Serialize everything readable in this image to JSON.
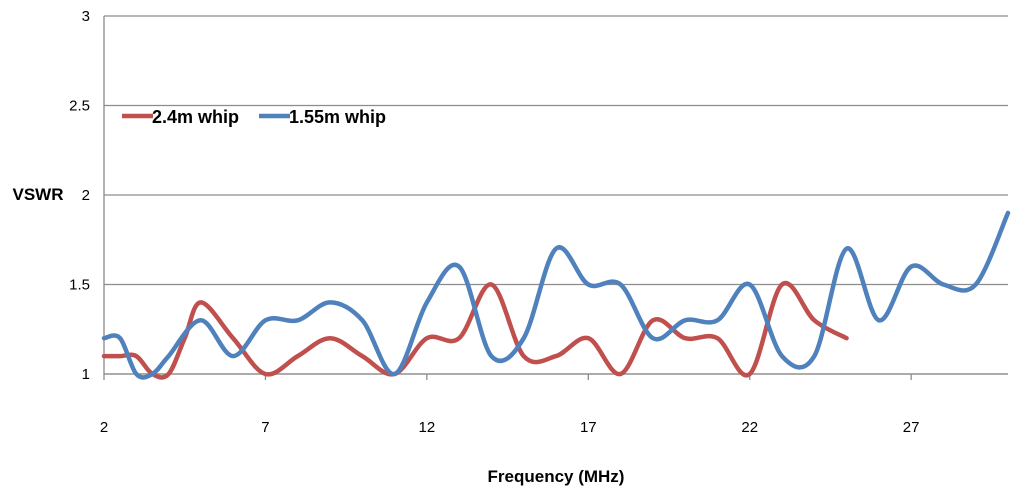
{
  "chart_data": {
    "type": "line",
    "title": "",
    "xlabel": "Frequency (MHz)",
    "ylabel": "VSWR",
    "xlim": [
      2,
      30
    ],
    "ylim": [
      1,
      3
    ],
    "x_ticks": [
      "2",
      "7",
      "12",
      "17",
      "22",
      "27"
    ],
    "y_ticks": [
      "1",
      "1.5",
      "2",
      "2.5",
      "3"
    ],
    "grid": "horizontal",
    "legend_position": "upper-left",
    "series": [
      {
        "name": "2.4m whip",
        "color": "#c0504d",
        "x": [
          2,
          2.5,
          3,
          3.5,
          4,
          4.5,
          5,
          6,
          7,
          8,
          9,
          10,
          11,
          12,
          13,
          14,
          15,
          16,
          17,
          18,
          19,
          20,
          21,
          22,
          23,
          24,
          25
        ],
        "y": [
          1.1,
          1.1,
          1.1,
          1.0,
          1.0,
          1.2,
          1.4,
          1.2,
          1.0,
          1.1,
          1.2,
          1.1,
          1.0,
          1.2,
          1.2,
          1.5,
          1.1,
          1.1,
          1.2,
          1.0,
          1.3,
          1.2,
          1.2,
          1.0,
          1.5,
          1.3,
          1.2
        ]
      },
      {
        "name": "1.55m whip",
        "color": "#4f81bd",
        "x": [
          2,
          2.5,
          3,
          3.5,
          4,
          5,
          6,
          7,
          8,
          9,
          10,
          11,
          12,
          13,
          14,
          15,
          16,
          17,
          18,
          19,
          20,
          21,
          22,
          23,
          24,
          25,
          26,
          27,
          28,
          29,
          30
        ],
        "y": [
          1.2,
          1.2,
          1.0,
          1.0,
          1.1,
          1.3,
          1.1,
          1.3,
          1.3,
          1.4,
          1.3,
          1.0,
          1.4,
          1.6,
          1.1,
          1.2,
          1.7,
          1.5,
          1.5,
          1.2,
          1.3,
          1.3,
          1.5,
          1.1,
          1.1,
          1.7,
          1.3,
          1.6,
          1.5,
          1.5,
          1.9
        ]
      }
    ]
  }
}
